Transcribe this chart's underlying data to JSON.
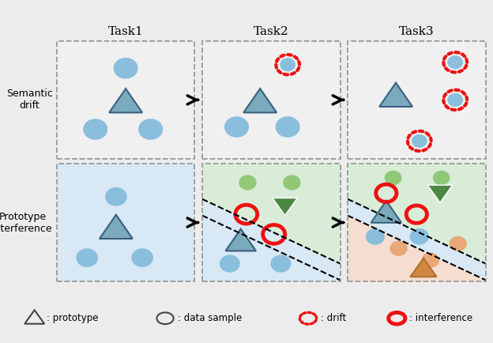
{
  "title_row": [
    "Task1",
    "Task2",
    "Task3"
  ],
  "row_labels": [
    "Semantic\ndrift",
    "Prototype\ninterference"
  ],
  "bg_color": "#ececec",
  "cell_bg_top": "#f0f0f0",
  "cell_bg_blue": "#d8e8f4",
  "cell_bg_green": "#d8ecd8",
  "cell_bg_orange": "#f5ddd0",
  "blue_circle_color": "#89bedd",
  "blue_triangle_fill": "#7aaabb",
  "blue_triangle_edge": "#3a6080",
  "green_circle_color": "#90c878",
  "green_triangle_color": "#4a8844",
  "orange_circle_color": "#e8a878",
  "orange_triangle_fill": "#d08840",
  "orange_triangle_edge": "#b07030",
  "red_color": "#ee1111",
  "dashed_border_color": "#999999",
  "arrow_color": "#111111"
}
